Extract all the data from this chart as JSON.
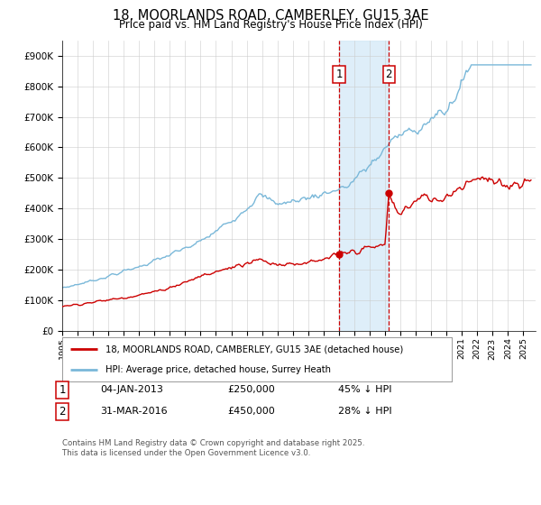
{
  "title_line1": "18, MOORLANDS ROAD, CAMBERLEY, GU15 3AE",
  "title_line2": "Price paid vs. HM Land Registry's House Price Index (HPI)",
  "legend_red": "18, MOORLANDS ROAD, CAMBERLEY, GU15 3AE (detached house)",
  "legend_blue": "HPI: Average price, detached house, Surrey Heath",
  "footnote": "Contains HM Land Registry data © Crown copyright and database right 2025.\nThis data is licensed under the Open Government Licence v3.0.",
  "annotation1_date": "04-JAN-2013",
  "annotation1_price": "£250,000",
  "annotation1_hpi": "45% ↓ HPI",
  "annotation2_date": "31-MAR-2016",
  "annotation2_price": "£450,000",
  "annotation2_hpi": "28% ↓ HPI",
  "sale1_year": 2013.02,
  "sale1_value": 250000,
  "sale2_year": 2016.25,
  "sale2_value": 450000,
  "hpi_color": "#7ab8d9",
  "price_color": "#cc0000",
  "vline_color": "#cc0000",
  "shade_color": "#d6eaf8",
  "background_color": "#ffffff",
  "grid_color": "#cccccc",
  "ylim_min": 0,
  "ylim_max": 950000,
  "xmin": 1995.0,
  "xmax": 2025.8
}
